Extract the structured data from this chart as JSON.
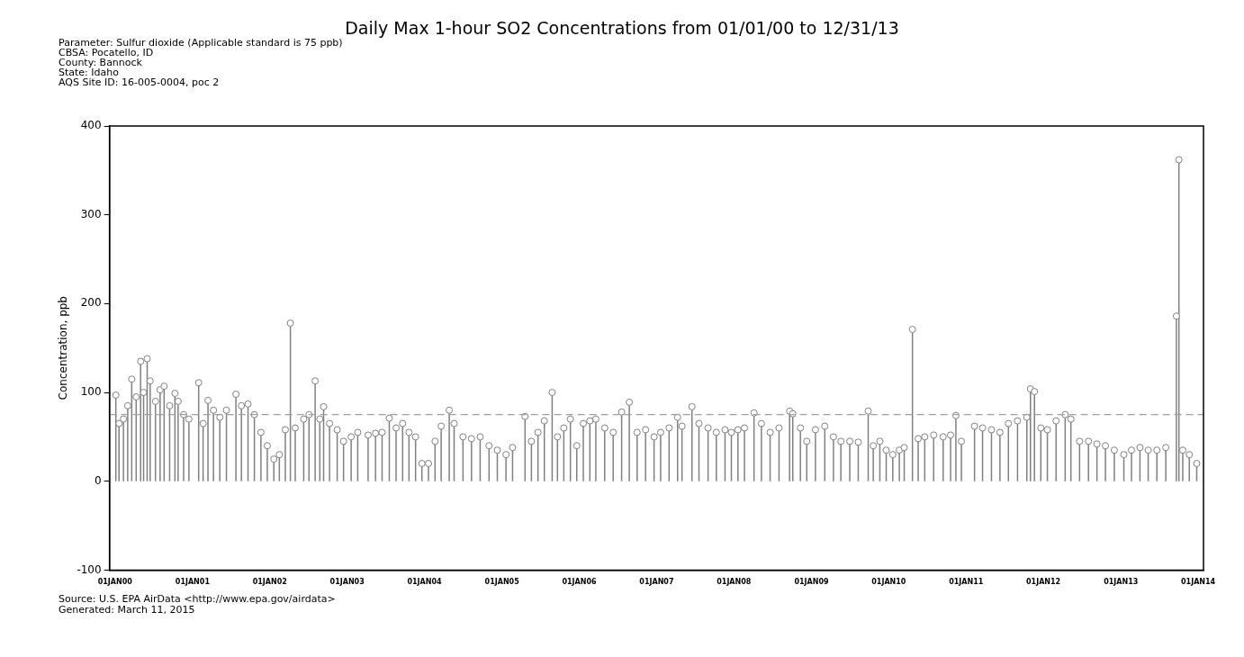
{
  "chart_data": {
    "type": "lollipop",
    "title": "Daily Max 1-hour SO2 Concentrations from 01/01/00 to 12/31/13",
    "subtitle": "Parameter: Sulfur dioxide (Applicable standard is 75 ppb)\nCBSA: Pocatello, ID\nCounty: Bannock\nState: Idaho\nAQS Site ID: 16-005-0004, poc 2",
    "ylabel": "Concentration, ppb",
    "annotations": [
      "Source: U.S. EPA AirData <http://www.epa.gov/airdata>",
      "Generated: March 11, 2015"
    ],
    "color": "#808080",
    "marker": "circle",
    "x": [
      "2000-01-05",
      "2000-01-20",
      "2000-02-10",
      "2000-03-01",
      "2000-03-20",
      "2000-04-10",
      "2000-05-01",
      "2000-05-15",
      "2000-06-01",
      "2000-06-15",
      "2000-07-10",
      "2000-08-01",
      "2000-08-20",
      "2000-09-15",
      "2000-10-10",
      "2000-10-25",
      "2000-11-20",
      "2000-12-15",
      "2001-01-30",
      "2001-02-20",
      "2001-03-15",
      "2001-04-10",
      "2001-05-10",
      "2001-06-10",
      "2001-07-25",
      "2001-08-20",
      "2001-09-20",
      "2001-10-20",
      "2001-11-20",
      "2001-12-20",
      "2002-01-20",
      "2002-02-15",
      "2002-03-15",
      "2002-04-08",
      "2002-05-01",
      "2002-06-10",
      "2002-07-05",
      "2002-08-03",
      "2002-08-25",
      "2002-09-12",
      "2002-10-10",
      "2002-11-15",
      "2002-12-15",
      "2003-01-20",
      "2003-02-20",
      "2003-04-10",
      "2003-05-15",
      "2003-06-15",
      "2003-07-19",
      "2003-08-20",
      "2003-09-20",
      "2003-10-20",
      "2003-11-20",
      "2003-12-20",
      "2004-01-20",
      "2004-02-20",
      "2004-03-20",
      "2004-04-27",
      "2004-05-20",
      "2004-07-01",
      "2004-08-10",
      "2004-09-20",
      "2004-11-01",
      "2004-12-10",
      "2005-01-20",
      "2005-02-20",
      "2005-04-20",
      "2005-05-20",
      "2005-06-20",
      "2005-07-20",
      "2005-08-26",
      "2005-09-20",
      "2005-10-20",
      "2005-11-20",
      "2005-12-20",
      "2006-01-20",
      "2006-02-20",
      "2006-03-20",
      "2006-05-01",
      "2006-06-10",
      "2006-07-20",
      "2006-08-25",
      "2006-10-01",
      "2006-11-10",
      "2006-12-20",
      "2007-01-20",
      "2007-03-01",
      "2007-04-10",
      "2007-05-01",
      "2007-06-17",
      "2007-07-20",
      "2007-09-01",
      "2007-10-10",
      "2007-11-20",
      "2007-12-20",
      "2008-01-20",
      "2008-02-20",
      "2008-04-05",
      "2008-05-10",
      "2008-06-20",
      "2008-08-01",
      "2008-09-20",
      "2008-10-05",
      "2008-11-10",
      "2008-12-10",
      "2009-01-20",
      "2009-03-05",
      "2009-04-15",
      "2009-05-20",
      "2009-07-01",
      "2009-08-10",
      "2009-09-26",
      "2009-10-20",
      "2009-11-20",
      "2009-12-20",
      "2010-01-20",
      "2010-02-20",
      "2010-03-15",
      "2010-04-23",
      "2010-05-20",
      "2010-06-20",
      "2010-08-01",
      "2010-09-15",
      "2010-10-20",
      "2010-11-14",
      "2010-12-10",
      "2011-02-10",
      "2011-03-20",
      "2011-05-01",
      "2011-06-10",
      "2011-07-20",
      "2011-09-01",
      "2011-10-15",
      "2011-11-01",
      "2011-11-20",
      "2011-12-20",
      "2012-01-20",
      "2012-03-01",
      "2012-04-13",
      "2012-05-10",
      "2012-06-20",
      "2012-08-01",
      "2012-09-10",
      "2012-10-20",
      "2012-12-01",
      "2013-01-15",
      "2013-02-20",
      "2013-04-01",
      "2013-05-10",
      "2013-06-20",
      "2013-08-01",
      "2013-09-20",
      "2013-10-02",
      "2013-10-20",
      "2013-11-20",
      "2013-12-25"
    ],
    "values": [
      97,
      65,
      70,
      85,
      115,
      95,
      135,
      100,
      138,
      113,
      90,
      103,
      107,
      85,
      99,
      90,
      75,
      70,
      111,
      65,
      91,
      80,
      72,
      80,
      98,
      85,
      87,
      75,
      55,
      40,
      25,
      30,
      58,
      178,
      60,
      70,
      75,
      113,
      70,
      84,
      65,
      58,
      45,
      50,
      55,
      52,
      54,
      55,
      71,
      60,
      65,
      55,
      50,
      20,
      20,
      45,
      62,
      80,
      65,
      50,
      48,
      50,
      40,
      35,
      30,
      38,
      73,
      45,
      55,
      68,
      100,
      50,
      60,
      70,
      40,
      65,
      68,
      70,
      60,
      55,
      78,
      89,
      55,
      58,
      50,
      55,
      60,
      72,
      62,
      84,
      65,
      60,
      55,
      58,
      55,
      58,
      60,
      77,
      65,
      55,
      60,
      79,
      76,
      60,
      45,
      58,
      62,
      50,
      45,
      45,
      44,
      79,
      40,
      45,
      35,
      30,
      35,
      38,
      171,
      48,
      50,
      52,
      50,
      52,
      74,
      45,
      62,
      60,
      58,
      55,
      65,
      68,
      72,
      104,
      101,
      60,
      58,
      68,
      75,
      70,
      45,
      45,
      42,
      40,
      35,
      30,
      35,
      38,
      35,
      35,
      38,
      186,
      362,
      35,
      30,
      20
    ],
    "xlim": [
      "1999-12-06",
      "2014-01-26"
    ],
    "xticks": [
      {
        "value": "2000-01-01",
        "label": "01JAN00"
      },
      {
        "value": "2001-01-01",
        "label": "01JAN01"
      },
      {
        "value": "2002-01-01",
        "label": "01JAN02"
      },
      {
        "value": "2003-01-01",
        "label": "01JAN03"
      },
      {
        "value": "2004-01-01",
        "label": "01JAN04"
      },
      {
        "value": "2005-01-01",
        "label": "01JAN05"
      },
      {
        "value": "2006-01-01",
        "label": "01JAN06"
      },
      {
        "value": "2007-01-01",
        "label": "01JAN07"
      },
      {
        "value": "2008-01-01",
        "label": "01JAN08"
      },
      {
        "value": "2009-01-01",
        "label": "01JAN09"
      },
      {
        "value": "2010-01-01",
        "label": "01JAN10"
      },
      {
        "value": "2011-01-01",
        "label": "01JAN11"
      },
      {
        "value": "2012-01-01",
        "label": "01JAN12"
      },
      {
        "value": "2013-01-01",
        "label": "01JAN13"
      },
      {
        "value": "2014-01-01",
        "label": "01JAN14"
      }
    ],
    "ylim": [
      -100,
      400
    ],
    "yticks": [
      -100,
      0,
      100,
      200,
      300,
      400
    ],
    "ref_lines": [
      {
        "axis": "y",
        "value": 75,
        "color": "#a0a0a0",
        "line_style": "dashed"
      }
    ]
  }
}
